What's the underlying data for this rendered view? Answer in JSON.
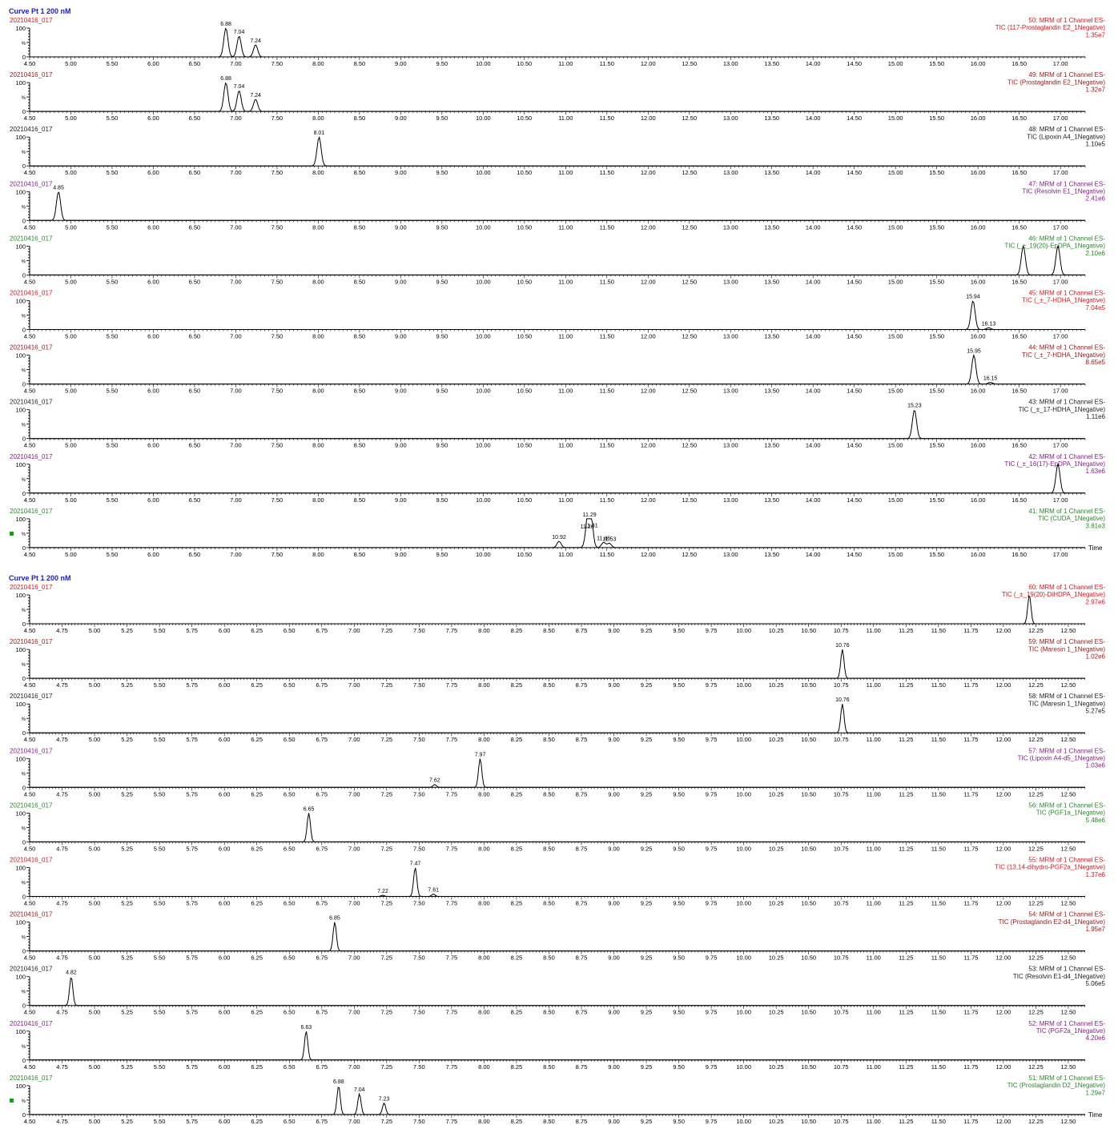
{
  "chart_data": [
    {
      "type": "line",
      "title": "Curve Pt 1 200 nM",
      "x_axis_label": "Time",
      "ylim": [
        0,
        100
      ],
      "y_tick_labels": [
        "100",
        "%",
        "0"
      ],
      "xlim": [
        4.5,
        17.3
      ],
      "x_ticks": [
        "4.50",
        "5.00",
        "5.50",
        "6.00",
        "6.50",
        "7.00",
        "7.50",
        "8.00",
        "8.50",
        "9.00",
        "9.50",
        "10.00",
        "10.50",
        "11.00",
        "11.50",
        "12.00",
        "12.50",
        "13.00",
        "13.50",
        "14.00",
        "14.50",
        "15.00",
        "15.50",
        "16.00",
        "16.50",
        "17.00"
      ],
      "traces": [
        {
          "sample": "20210416_017",
          "color": "#e8141b",
          "info": [
            "50: MRM of 1 Channel ES-",
            "TIC (117-Prostaglandin E2_1Negative)",
            "1.35e7"
          ],
          "peaks": [
            {
              "rt": 6.88,
              "height": 100,
              "label": "6.88"
            },
            {
              "rt": 7.04,
              "height": 72,
              "label": "7.04"
            },
            {
              "rt": 7.24,
              "height": 42,
              "label": "7.24"
            }
          ]
        },
        {
          "sample": "20210416_017",
          "color": "#a61818",
          "info": [
            "49: MRM of 1 Channel ES-",
            "TIC (Prostaglandin E2_1Negative)",
            "1.32e7"
          ],
          "peaks": [
            {
              "rt": 6.88,
              "height": 100,
              "label": "6.88"
            },
            {
              "rt": 7.04,
              "height": 72,
              "label": "7.04"
            },
            {
              "rt": 7.24,
              "height": 42,
              "label": "7.24"
            }
          ]
        },
        {
          "sample": "20210416_017",
          "color": "#222222",
          "info": [
            "48: MRM of 1 Channel ES-",
            "TIC (Lipoxin A4_1Negative)",
            "1.10e5"
          ],
          "peaks": [
            {
              "rt": 8.01,
              "height": 100,
              "label": "8.01"
            }
          ]
        },
        {
          "sample": "20210416_017",
          "color": "#8a1e8a",
          "info": [
            "47: MRM of 1 Channel ES-",
            "TIC (Resolvin E1_1Negative)",
            "2.41e6"
          ],
          "peaks": [
            {
              "rt": 4.85,
              "height": 100,
              "label": "4.85"
            }
          ]
        },
        {
          "sample": "20210416_017",
          "color": "#2a8a2a",
          "info": [
            "46: MRM of 1 Channel ES-",
            "TIC (_±_19(20)-EpDPA_1Negative)",
            "2.10e6"
          ],
          "peaks": [
            {
              "rt": 16.55,
              "height": 100,
              "label": ""
            },
            {
              "rt": 16.97,
              "height": 100,
              "label": ""
            }
          ]
        },
        {
          "sample": "20210416_017",
          "color": "#e8141b",
          "info": [
            "45: MRM of 1 Channel ES-",
            "TIC (_±_7-HDHA_1Negative)",
            "7.04e5"
          ],
          "peaks": [
            {
              "rt": 15.94,
              "height": 100,
              "label": "15.94"
            },
            {
              "rt": 16.13,
              "height": 6,
              "label": "16.13"
            }
          ]
        },
        {
          "sample": "20210416_017",
          "color": "#a61818",
          "info": [
            "44: MRM of 1 Channel ES-",
            "TIC (_±_7-HDHA_1Negative)",
            "8.65e5"
          ],
          "peaks": [
            {
              "rt": 15.95,
              "height": 100,
              "label": "15.95"
            },
            {
              "rt": 16.15,
              "height": 6,
              "label": "16.15"
            }
          ]
        },
        {
          "sample": "20210416_017",
          "color": "#222222",
          "info": [
            "43: MRM of 1 Channel ES-",
            "TIC (_±_17-HDHA_1Negative)",
            "1.11e6"
          ],
          "peaks": [
            {
              "rt": 15.23,
              "height": 100,
              "label": "15.23"
            }
          ]
        },
        {
          "sample": "20210416_017",
          "color": "#8a1e8a",
          "info": [
            "42: MRM of 1 Channel ES-",
            "TIC (_±_16(17)-EpDPA_1Negative)",
            "1.63e6"
          ],
          "peaks": [
            {
              "rt": 16.97,
              "height": 100,
              "label": ""
            }
          ]
        },
        {
          "sample": "20210416_017",
          "color": "#2a8a2a",
          "info": [
            "41: MRM of 1 Channel ES-",
            "TIC (CUDA_1Negative)",
            "3.81e3"
          ],
          "peaks": [
            {
              "rt": 10.92,
              "height": 22,
              "label": "10.92"
            },
            {
              "rt": 11.26,
              "height": 58,
              "label": "11.26"
            },
            {
              "rt": 11.29,
              "height": 100,
              "label": "11.29"
            },
            {
              "rt": 11.31,
              "height": 62,
              "label": "11.31"
            },
            {
              "rt": 11.46,
              "height": 18,
              "label": "11.46"
            },
            {
              "rt": 11.53,
              "height": 15,
              "label": "11.53"
            }
          ]
        }
      ]
    },
    {
      "type": "line",
      "title": "Curve Pt 1 200 nM",
      "x_axis_label": "Time",
      "ylim": [
        0,
        100
      ],
      "y_tick_labels": [
        "100",
        "%",
        "0"
      ],
      "xlim": [
        4.5,
        12.63
      ],
      "x_ticks": [
        "4.50",
        "4.75",
        "5.00",
        "5.25",
        "5.50",
        "5.75",
        "6.00",
        "6.25",
        "6.50",
        "6.75",
        "7.00",
        "7.25",
        "7.50",
        "7.75",
        "8.00",
        "8.25",
        "8.50",
        "8.75",
        "9.00",
        "9.25",
        "9.50",
        "9.75",
        "10.00",
        "10.25",
        "10.50",
        "10.75",
        "11.00",
        "11.25",
        "11.50",
        "11.75",
        "12.00",
        "12.25",
        "12.50"
      ],
      "traces": [
        {
          "sample": "20210416_017",
          "color": "#e8141b",
          "info": [
            "60: MRM of 1 Channel ES-",
            "TIC (_±_19(20)-DiHDPA_1Negative)",
            "2.97e6"
          ],
          "peaks": [
            {
              "rt": 12.2,
              "height": 100,
              "label": ""
            }
          ]
        },
        {
          "sample": "20210416_017",
          "color": "#a61818",
          "info": [
            "59: MRM of 1 Channel ES-",
            "TIC (Maresin 1_1Negative)",
            "1.02e6"
          ],
          "peaks": [
            {
              "rt": 10.76,
              "height": 100,
              "label": "10.76"
            }
          ]
        },
        {
          "sample": "20210416_017",
          "color": "#222222",
          "info": [
            "58: MRM of 1 Channel ES-",
            "TIC (Maresin 1_1Negative)",
            "5.27e5"
          ],
          "peaks": [
            {
              "rt": 10.76,
              "height": 100,
              "label": "10.76"
            }
          ]
        },
        {
          "sample": "20210416_017",
          "color": "#8a1e8a",
          "info": [
            "57: MRM of 1 Channel ES-",
            "TIC (Lipoxin A4-d5_1Negative)",
            "1.03e6"
          ],
          "peaks": [
            {
              "rt": 7.62,
              "height": 10,
              "label": "7.62"
            },
            {
              "rt": 7.97,
              "height": 100,
              "label": "7.97"
            }
          ]
        },
        {
          "sample": "20210416_017",
          "color": "#2a8a2a",
          "info": [
            "56: MRM of 1 Channel ES-",
            "TIC (PGF1a_1Negative)",
            "5.48e6"
          ],
          "peaks": [
            {
              "rt": 6.65,
              "height": 100,
              "label": "6.65"
            }
          ]
        },
        {
          "sample": "20210416_017",
          "color": "#e8141b",
          "info": [
            "55: MRM of 1 Channel ES-",
            "TIC (13,14-dihydro-PGF2a_1Negative)",
            "1.37e6"
          ],
          "peaks": [
            {
              "rt": 7.22,
              "height": 4,
              "label": "7.22"
            },
            {
              "rt": 7.47,
              "height": 100,
              "label": "7.47"
            },
            {
              "rt": 7.61,
              "height": 8,
              "label": "7.61"
            }
          ]
        },
        {
          "sample": "20210416_017",
          "color": "#a61818",
          "info": [
            "54: MRM of 1 Channel ES-",
            "TIC (Prostaglandin E2-d4_1Negative)",
            "1.95e7"
          ],
          "peaks": [
            {
              "rt": 6.85,
              "height": 100,
              "label": "6.85"
            }
          ]
        },
        {
          "sample": "20210416_017",
          "color": "#222222",
          "info": [
            "53: MRM of 1 Channel ES-",
            "TIC (Resolvin E1-d4_1Negative)",
            "5.06e5"
          ],
          "peaks": [
            {
              "rt": 4.82,
              "height": 100,
              "label": "4.82"
            }
          ]
        },
        {
          "sample": "20210416_017",
          "color": "#8a1e8a",
          "info": [
            "52: MRM of 1 Channel ES-",
            "TIC (PGF2a_1Negative)",
            "4.20e6"
          ],
          "peaks": [
            {
              "rt": 6.63,
              "height": 100,
              "label": "6.63"
            }
          ]
        },
        {
          "sample": "20210416_017",
          "color": "#2a8a2a",
          "info": [
            "51: MRM of 1 Channel ES-",
            "TIC (Prostaglandin D2_1Negative)",
            "1.29e7"
          ],
          "peaks": [
            {
              "rt": 6.88,
              "height": 100,
              "label": "6.88"
            },
            {
              "rt": 7.04,
              "height": 72,
              "label": "7.04"
            },
            {
              "rt": 7.23,
              "height": 40,
              "label": "7.23"
            }
          ]
        }
      ]
    }
  ],
  "styles": {
    "title_color": "#1a1ad6",
    "marker_color": "#12a012",
    "axis_color": "#000000",
    "trace_color": "#000000"
  }
}
